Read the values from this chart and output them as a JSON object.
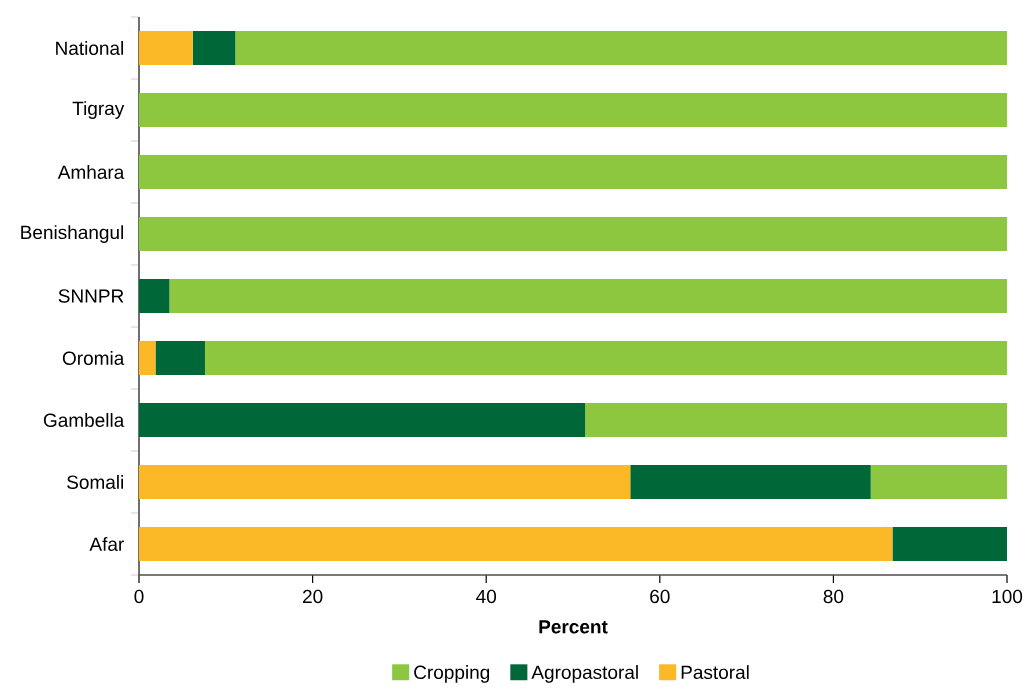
{
  "chart_data": {
    "type": "bar",
    "orientation": "horizontal",
    "stacked": true,
    "xlabel": "Percent",
    "categories": [
      "National",
      "Tigray",
      "Amhara",
      "Benishangul",
      "SNNPR",
      "Oromia",
      "Gambella",
      "Somali",
      "Afar"
    ],
    "series": [
      {
        "name": "Pastoral",
        "color": "#fbb827",
        "values": [
          6.2,
          0,
          0,
          0,
          0,
          1.9,
          0,
          56.6,
          86.8
        ]
      },
      {
        "name": "Agropastoral",
        "color": "#006838",
        "values": [
          4.9,
          0,
          0,
          0,
          3.5,
          5.7,
          51.4,
          27.7,
          13.2
        ]
      },
      {
        "name": "Cropping",
        "color": "#8dc63f",
        "values": [
          88.9,
          100,
          100,
          100,
          96.5,
          92.4,
          48.6,
          15.7,
          0
        ]
      }
    ],
    "xlim": [
      0,
      100
    ],
    "xticks": [
      0,
      20,
      40,
      60,
      80,
      100
    ],
    "legend": "bottom",
    "grid": false
  }
}
